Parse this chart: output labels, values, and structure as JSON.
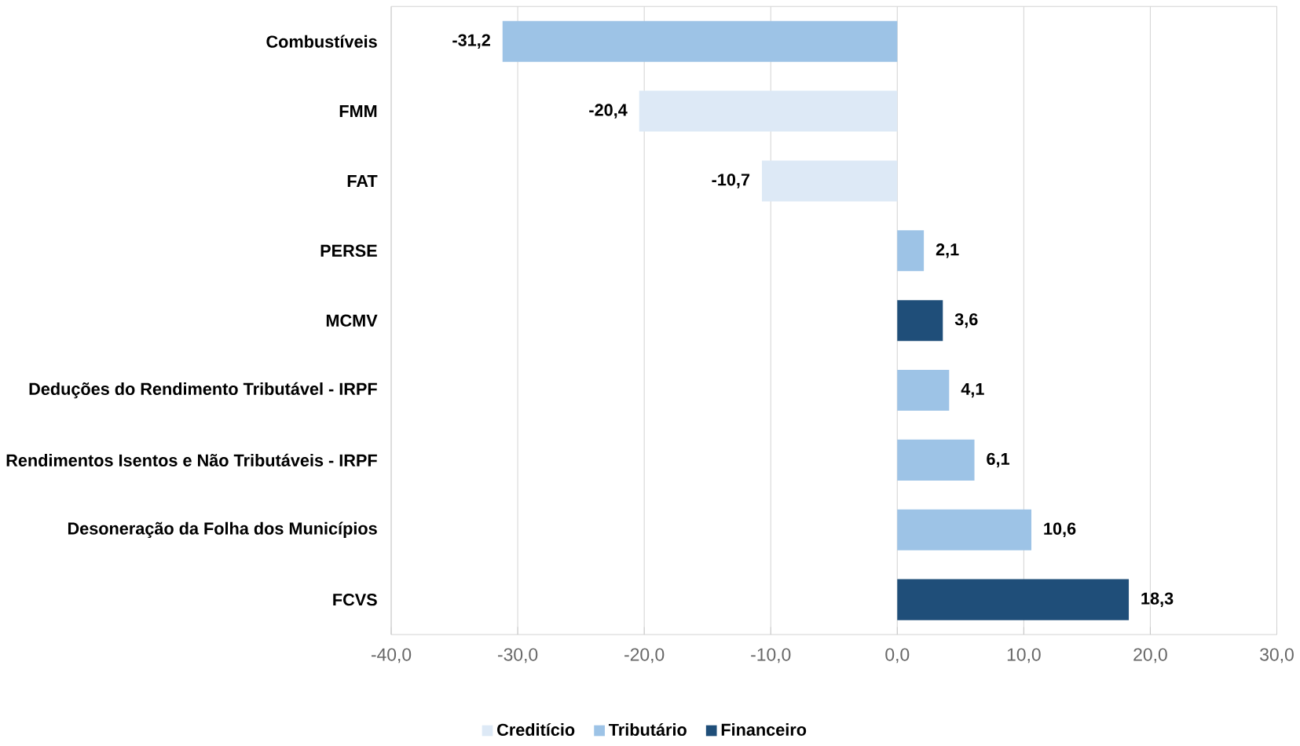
{
  "chart_data": {
    "type": "bar",
    "orientation": "horizontal",
    "categories": [
      "Combustíveis",
      "FMM",
      "FAT",
      "PERSE",
      "MCMV",
      "Deduções do Rendimento Tributável - IRPF",
      "Rendimentos Isentos e Não Tributáveis - IRPF",
      "Desoneração da Folha dos Municípios",
      "FCVS"
    ],
    "series": [
      {
        "name": "Creditício",
        "color": "#dde9f6",
        "values": [
          null,
          -20.4,
          -10.7,
          null,
          null,
          null,
          null,
          null,
          null
        ],
        "value_labels": [
          null,
          "-20,4",
          "-10,7",
          null,
          null,
          null,
          null,
          null,
          null
        ]
      },
      {
        "name": "Tributário",
        "color": "#9dc3e6",
        "values": [
          -31.2,
          null,
          null,
          2.1,
          null,
          4.1,
          6.1,
          10.6,
          null
        ],
        "value_labels": [
          "-31,2",
          null,
          null,
          "2,1",
          null,
          "4,1",
          "6,1",
          "10,6",
          null
        ]
      },
      {
        "name": "Financeiro",
        "color": "#1f4e79",
        "values": [
          null,
          null,
          null,
          null,
          3.6,
          null,
          null,
          null,
          18.3
        ],
        "value_labels": [
          null,
          null,
          null,
          null,
          "3,6",
          null,
          null,
          null,
          "18,3"
        ]
      }
    ],
    "xlim": [
      -40,
      30
    ],
    "xticks": [
      {
        "value": -40,
        "label": "-40,0"
      },
      {
        "value": -30,
        "label": "-30,0"
      },
      {
        "value": -20,
        "label": "-20,0"
      },
      {
        "value": -10,
        "label": "-10,0"
      },
      {
        "value": 0,
        "label": "0,0"
      },
      {
        "value": 10,
        "label": "10,0"
      },
      {
        "value": 20,
        "label": "20,0"
      },
      {
        "value": 30,
        "label": "30,0"
      }
    ],
    "grid": "x",
    "legend": "bottom"
  }
}
